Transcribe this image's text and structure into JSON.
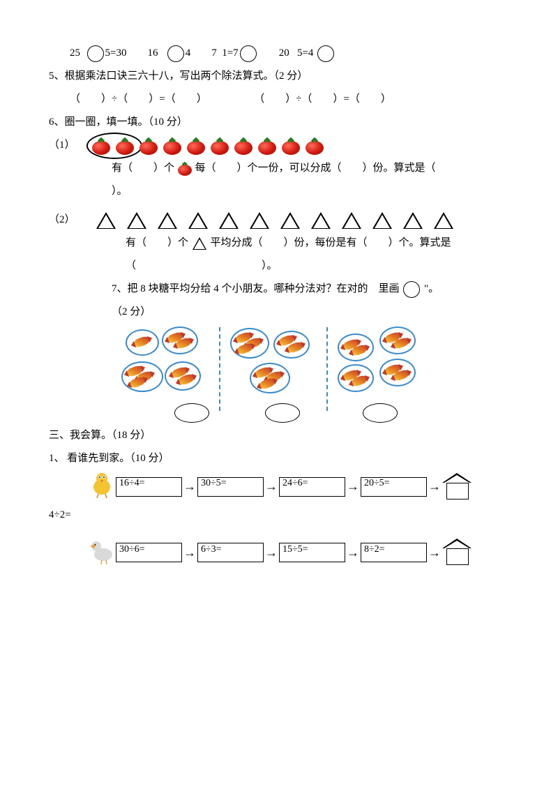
{
  "q4": {
    "items": [
      {
        "a": "25",
        "b": "5=30"
      },
      {
        "a": "16",
        "b": "4"
      },
      {
        "a": "7",
        "mid": "1=7"
      },
      {
        "a": "20",
        "b": "5=4"
      }
    ]
  },
  "q5": {
    "title": "5、根据乘法口诀三六十八，写出两个除法算式。（2 分）",
    "eq": "（　　）÷（　　）=（　　）"
  },
  "q6": {
    "title": "6、圈一圈，填一填。（10 分）",
    "p1_label": "（1）",
    "p1_count": 10,
    "p1_text_a": "有（　　）个",
    "p1_text_b": "每（　　）个一份，可以分成（　　）份。算式是（",
    "p1_text_c": "）。",
    "p2_label": "（2）",
    "p2_count": 12,
    "p2_text_a": "有（　　）个",
    "p2_text_b": "平均分成（　　）份，每份是有（　　）个。算式是",
    "p2_text_c": "（　　　　　　　　　　　　）。"
  },
  "q7": {
    "title_a": "7、把 8 块糖平均分给 4 个小朋友。哪种分法对？在对的",
    "title_b": "里画",
    "title_c": "\"。",
    "points": "（2 分）"
  },
  "sec3": {
    "title": "三、我会算。（18 分）",
    "sub1": "1、 看谁先到家。（10 分）",
    "chain1": [
      "16÷4=",
      "30÷5=",
      "24÷6=",
      "20÷5="
    ],
    "extra1": "4÷2=",
    "chain2": [
      "30÷6=",
      "6÷3=",
      "15÷5=",
      "8÷2="
    ]
  },
  "colors": {
    "text": "#000000",
    "circle_blue": "#3a8bcc",
    "tomato_red": "#d11a0f",
    "leaf_green": "#2a7a1f",
    "bird1": "#f4c430",
    "bird2": "#9aa0a6"
  }
}
